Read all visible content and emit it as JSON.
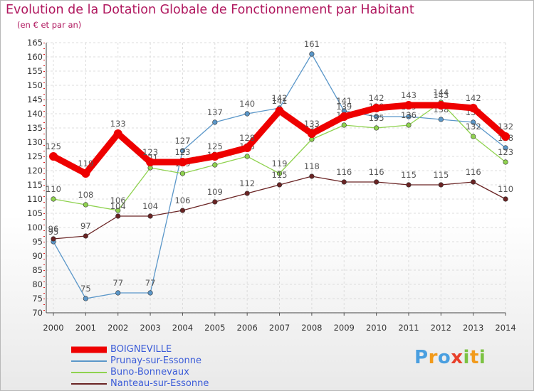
{
  "header": {
    "title": "Evolution de la Dotation Globale de Fonctionnement par Habitant",
    "subtitle": "(en € et par an)"
  },
  "chart_data": {
    "type": "line",
    "x": [
      "2000",
      "2001",
      "2002",
      "2003",
      "2004",
      "2005",
      "2006",
      "2007",
      "2008",
      "2009",
      "2010",
      "2011",
      "2012",
      "2013",
      "2014"
    ],
    "ylim": [
      70,
      165
    ],
    "yticks": [
      70,
      75,
      80,
      85,
      90,
      95,
      100,
      105,
      110,
      115,
      120,
      125,
      130,
      135,
      140,
      145,
      150,
      155,
      160,
      165
    ],
    "grid": true,
    "legend_position": "bottom-left",
    "series": [
      {
        "name": "Prunay-sur-Essonne",
        "color": "#5b97c9",
        "values": [
          95,
          75,
          77,
          77,
          127,
          137,
          140,
          142,
          161,
          141,
          139,
          139,
          138,
          137,
          128
        ]
      },
      {
        "name": "Buno-Bonnevaux",
        "color": "#8fd24f",
        "values": [
          110,
          108,
          106,
          121,
          119,
          122,
          125,
          119,
          131,
          136,
          135,
          136,
          144,
          132,
          123
        ]
      },
      {
        "name": "Nanteau-sur-Essonne",
        "color": "#6a2424",
        "values": [
          96,
          97,
          104,
          104,
          106,
          109,
          112,
          115,
          118,
          116,
          116,
          115,
          115,
          116,
          110
        ]
      },
      {
        "name": "BOIGNEVILLE",
        "color": "#ee0000",
        "values": [
          125,
          119,
          133,
          123,
          123,
          125,
          128,
          141,
          133,
          139,
          142,
          143,
          143,
          142,
          132
        ]
      }
    ],
    "legend_order": [
      "BOIGNEVILLE",
      "Prunay-sur-Essonne",
      "Buno-Bonnevaux",
      "Nanteau-sur-Essonne"
    ]
  },
  "logo": {
    "text": "Proxiti",
    "letters": [
      "P",
      "r",
      "o",
      "x",
      "i",
      "t",
      "i"
    ],
    "colors": [
      "#4a9fe0",
      "#f29a1b",
      "#4a9fe0",
      "#e8402a",
      "#7cc242",
      "#f29a1b",
      "#7cc242"
    ]
  }
}
